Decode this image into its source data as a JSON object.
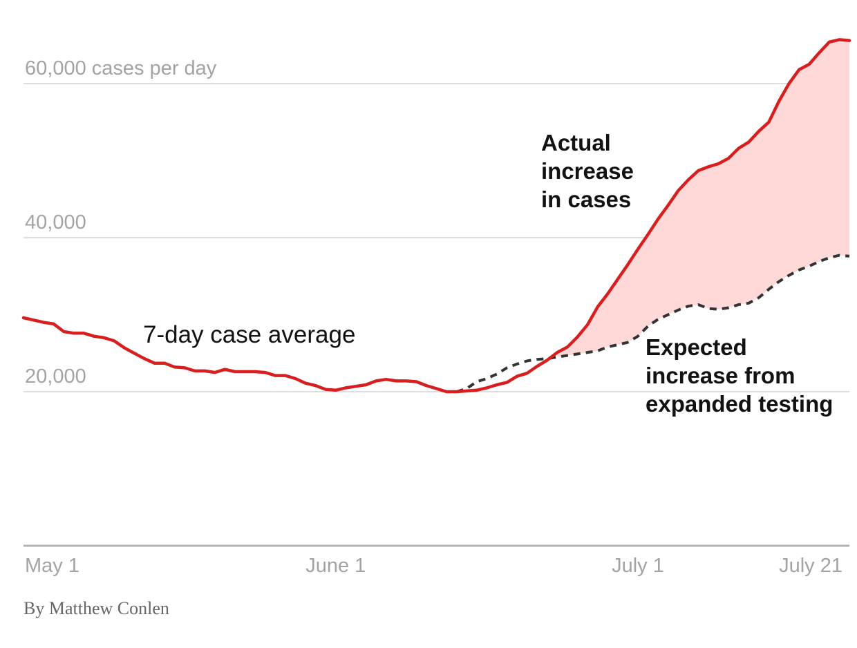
{
  "chart_data": {
    "type": "area",
    "title": "",
    "xlabel": "",
    "ylabel": "cases per day",
    "ylim": [
      0,
      66000
    ],
    "x_range_days": [
      0,
      82
    ],
    "x_ticks": [
      {
        "label": "May 1",
        "day": 0
      },
      {
        "label": "June 1",
        "day": 31
      },
      {
        "label": "July 1",
        "day": 61
      },
      {
        "label": "July 21",
        "day": 81
      }
    ],
    "y_ticks": [
      {
        "label": "60,000 cases per day",
        "value": 60000
      },
      {
        "label": "40,000",
        "value": 40000
      },
      {
        "label": "20,000",
        "value": 20000
      }
    ],
    "colors": {
      "actual_line": "#d71f1f",
      "gap_fill": "#ffd8d8",
      "expected_line": "#333333",
      "gridline": "#dddddd",
      "baseline": "#b3b3b3"
    },
    "series": [
      {
        "name": "7-day case average",
        "style": "solid-red",
        "points": [
          [
            0,
            29600
          ],
          [
            1,
            29300
          ],
          [
            2,
            29000
          ],
          [
            3,
            28800
          ],
          [
            4,
            27800
          ],
          [
            5,
            27600
          ],
          [
            6,
            27600
          ],
          [
            7,
            27200
          ],
          [
            8,
            27000
          ],
          [
            9,
            26600
          ],
          [
            10,
            25700
          ],
          [
            11,
            25000
          ],
          [
            12,
            24300
          ],
          [
            13,
            23700
          ],
          [
            14,
            23700
          ],
          [
            15,
            23200
          ],
          [
            16,
            23100
          ],
          [
            17,
            22700
          ],
          [
            18,
            22700
          ],
          [
            19,
            22500
          ],
          [
            20,
            22900
          ],
          [
            21,
            22600
          ],
          [
            22,
            22600
          ],
          [
            23,
            22600
          ],
          [
            24,
            22500
          ],
          [
            25,
            22100
          ],
          [
            26,
            22100
          ],
          [
            27,
            21700
          ],
          [
            28,
            21100
          ],
          [
            29,
            20800
          ],
          [
            30,
            20300
          ],
          [
            31,
            20200
          ],
          [
            32,
            20500
          ],
          [
            33,
            20700
          ],
          [
            34,
            20900
          ],
          [
            35,
            21400
          ],
          [
            36,
            21600
          ],
          [
            37,
            21400
          ],
          [
            38,
            21400
          ],
          [
            39,
            21300
          ],
          [
            40,
            20800
          ],
          [
            41,
            20400
          ],
          [
            42,
            20000
          ],
          [
            43,
            20000
          ],
          [
            44,
            20100
          ],
          [
            45,
            20200
          ],
          [
            46,
            20500
          ],
          [
            47,
            20900
          ],
          [
            48,
            21200
          ],
          [
            49,
            22000
          ],
          [
            50,
            22400
          ],
          [
            51,
            23300
          ],
          [
            52,
            24100
          ],
          [
            53,
            25100
          ],
          [
            54,
            25800
          ],
          [
            55,
            27100
          ],
          [
            56,
            28700
          ],
          [
            57,
            31000
          ],
          [
            58,
            32700
          ],
          [
            59,
            34600
          ],
          [
            60,
            36500
          ],
          [
            61,
            38500
          ],
          [
            62,
            40400
          ],
          [
            63,
            42400
          ],
          [
            64,
            44200
          ],
          [
            65,
            46100
          ],
          [
            66,
            47500
          ],
          [
            67,
            48700
          ],
          [
            68,
            49200
          ],
          [
            69,
            49600
          ],
          [
            70,
            50300
          ],
          [
            71,
            51600
          ],
          [
            72,
            52400
          ],
          [
            73,
            53800
          ],
          [
            74,
            55000
          ],
          [
            75,
            57700
          ],
          [
            76,
            60000
          ],
          [
            77,
            61800
          ],
          [
            78,
            62500
          ],
          [
            79,
            64000
          ],
          [
            80,
            65400
          ],
          [
            81,
            65700
          ],
          [
            82,
            65600
          ]
        ]
      },
      {
        "name": "Expected increase from expanded testing",
        "style": "dashed-dark",
        "points": [
          [
            43,
            20000
          ],
          [
            44,
            20400
          ],
          [
            45,
            21300
          ],
          [
            46,
            21700
          ],
          [
            47,
            22300
          ],
          [
            48,
            23100
          ],
          [
            49,
            23600
          ],
          [
            50,
            24000
          ],
          [
            51,
            24200
          ],
          [
            52,
            24300
          ],
          [
            53,
            24500
          ],
          [
            54,
            24700
          ],
          [
            55,
            24900
          ],
          [
            56,
            25100
          ],
          [
            57,
            25300
          ],
          [
            58,
            25800
          ],
          [
            59,
            26100
          ],
          [
            60,
            26400
          ],
          [
            61,
            27200
          ],
          [
            62,
            28500
          ],
          [
            63,
            29400
          ],
          [
            64,
            30000
          ],
          [
            65,
            30600
          ],
          [
            66,
            31100
          ],
          [
            67,
            31300
          ],
          [
            68,
            30800
          ],
          [
            69,
            30700
          ],
          [
            70,
            30900
          ],
          [
            71,
            31300
          ],
          [
            72,
            31500
          ],
          [
            73,
            32200
          ],
          [
            74,
            33300
          ],
          [
            75,
            34300
          ],
          [
            76,
            35100
          ],
          [
            77,
            35800
          ],
          [
            78,
            36300
          ],
          [
            79,
            36900
          ],
          [
            80,
            37400
          ],
          [
            81,
            37700
          ],
          [
            82,
            37600
          ]
        ]
      }
    ],
    "gap_region": {
      "name": "Actual increase vs expected",
      "from_day": 53,
      "to_day": 82
    },
    "annotations": {
      "series_label": "7-day case average",
      "actual_label": [
        "Actual",
        "increase",
        "in cases"
      ],
      "expected_label": [
        "Expected",
        "increase from",
        "expanded testing"
      ]
    }
  },
  "byline": "By Matthew Conlen"
}
